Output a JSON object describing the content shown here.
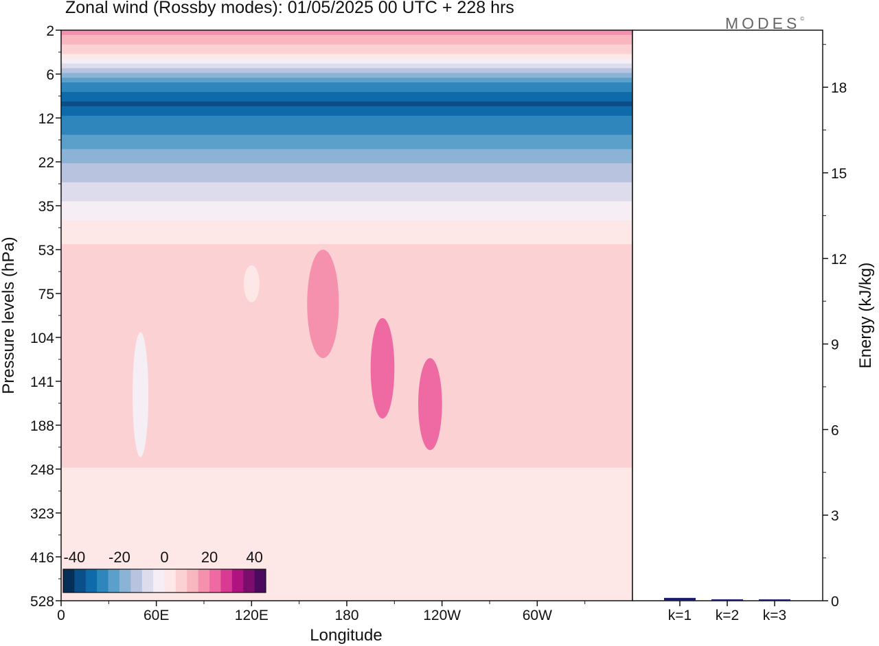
{
  "header": {
    "title": "Zonal wind (Rossby modes):  01/05/2025  00 UTC  + 228 hrs",
    "brand": "MODES",
    "brand_mark": "©"
  },
  "chart_data": [
    {
      "type": "heatmap",
      "title": "Zonal wind (Rossby modes):  01/05/2025  00 UTC  + 228 hrs",
      "xlabel": "Longitude",
      "ylabel": "Pressure levels (hPa)",
      "x_ticks": [
        "0",
        "60E",
        "120E",
        "180",
        "120W",
        "60W"
      ],
      "y_ticks": [
        "2",
        "6",
        "12",
        "22",
        "35",
        "53",
        "75",
        "104",
        "141",
        "188",
        "248",
        "323",
        "416",
        "528"
      ],
      "y_scale": "log",
      "colorbar": {
        "ticks": [
          "-40",
          "-20",
          "0",
          "20",
          "40"
        ],
        "range": [
          -45,
          45
        ],
        "colors": [
          "#062f57",
          "#0b4f8a",
          "#0f6aaa",
          "#2f86bd",
          "#5b9fcb",
          "#8ab3d5",
          "#b8c4df",
          "#dcdcec",
          "#f5eef5",
          "#fde7e7",
          "#fbd1d3",
          "#f8b7bf",
          "#f590ad",
          "#ef6aa3",
          "#d93b93",
          "#b0127f",
          "#7d0d6d",
          "#4a0a5e"
        ]
      },
      "profile": {
        "pressure": [
          2,
          3,
          4,
          5,
          6,
          8,
          10,
          12,
          16,
          22,
          28,
          35,
          45,
          53,
          75,
          104,
          141,
          188,
          248,
          323,
          416,
          528
        ],
        "zonal_mean_u": [
          18,
          10,
          3,
          -6,
          -18,
          -32,
          -36,
          -30,
          -24,
          -16,
          -10,
          -4,
          3,
          6,
          8,
          9,
          8,
          7,
          5,
          4,
          3,
          1
        ]
      },
      "cells": [
        {
          "lon_range": [
            155,
            175
          ],
          "p_range": [
            53,
            120
          ],
          "value": 16
        },
        {
          "lon_range": [
            195,
            210
          ],
          "p_range": [
            90,
            180
          ],
          "value": 22
        },
        {
          "lon_range": [
            225,
            240
          ],
          "p_range": [
            120,
            220
          ],
          "value": 22
        },
        {
          "lon_range": [
            115,
            125
          ],
          "p_range": [
            60,
            80
          ],
          "value": 1
        },
        {
          "lon_range": [
            45,
            55
          ],
          "p_range": [
            100,
            230
          ],
          "value": -2
        }
      ]
    },
    {
      "type": "bar",
      "categories": [
        "k=1",
        "k=2",
        "k=3"
      ],
      "values": [
        0.1,
        0.05,
        0.03
      ],
      "ylabel": "Energy (kJ/kg)",
      "y_ticks": [
        "0",
        "3",
        "6",
        "9",
        "12",
        "15",
        "18"
      ],
      "ylim": [
        0,
        20
      ]
    }
  ]
}
